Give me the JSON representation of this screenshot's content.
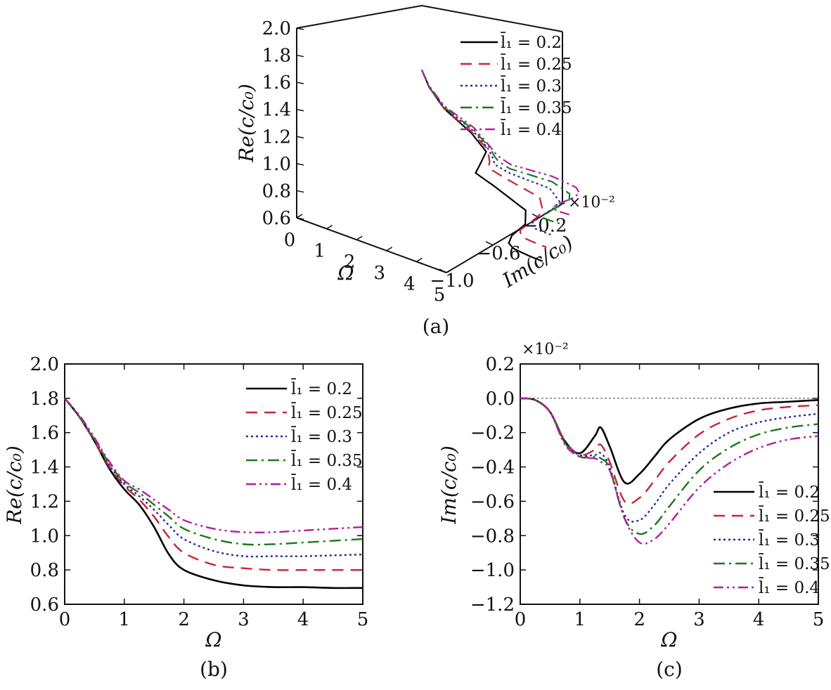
{
  "series_styles": [
    {
      "name": "l̄₁ = 0.2",
      "color": "#000000",
      "dash": ""
    },
    {
      "name": "l̄₁ = 0.25",
      "color": "#cc2233",
      "dash": "16,10"
    },
    {
      "name": "l̄₁ = 0.3",
      "color": "#2a2a9a",
      "dash": "3,4"
    },
    {
      "name": "l̄₁ = 0.35",
      "color": "#1a7a1a",
      "dash": "16,6,3,6"
    },
    {
      "name": "l̄₁ = 0.4",
      "color": "#b020a0",
      "dash": "14,5,3,5,3,5"
    }
  ],
  "chart_data": [
    {
      "panel": "(a)",
      "type": "line",
      "projection": "3d",
      "xlabel": "Ω",
      "ylabel": "Im(c/c₀)",
      "zlabel": "Re(c/c₀)",
      "y_multiplier": "×10⁻²",
      "x_ticks": [
        "0",
        "1",
        "2",
        "3",
        "4",
        "5"
      ],
      "y_ticks": [
        "−1.0",
        "−0.6",
        "−0.2"
      ],
      "z_ticks": [
        "0.6",
        "0.8",
        "1.0",
        "1.2",
        "1.4",
        "1.6",
        "1.8",
        "2.0"
      ],
      "xlim": [
        0,
        5
      ],
      "ylim": [
        -1.0,
        0.0
      ],
      "zlim": [
        0.6,
        2.0
      ],
      "legend": [
        "l̄₁ = 0.2",
        "l̄₁ = 0.25",
        "l̄₁ = 0.3",
        "l̄₁ = 0.35",
        "l̄₁ = 0.4"
      ],
      "legend_position": "top-right"
    },
    {
      "panel": "(b)",
      "type": "line",
      "xlabel": "Ω",
      "ylabel": "Re(c/c₀)",
      "xlim": [
        0,
        5
      ],
      "ylim": [
        0.6,
        2.0
      ],
      "x_ticks": [
        "0",
        "1",
        "2",
        "3",
        "4",
        "5"
      ],
      "y_ticks": [
        "0.6",
        "0.8",
        "1.0",
        "1.2",
        "1.4",
        "1.6",
        "1.8",
        "2.0"
      ],
      "legend_position": "top-right",
      "x": [
        0,
        0.25,
        0.5,
        0.75,
        1.0,
        1.25,
        1.5,
        1.75,
        2.0,
        2.5,
        3.0,
        3.5,
        4.0,
        4.5,
        5.0
      ],
      "series": [
        {
          "name": "l̄₁ = 0.2",
          "values": [
            1.8,
            1.69,
            1.55,
            1.39,
            1.27,
            1.18,
            1.05,
            0.89,
            0.8,
            0.74,
            0.71,
            0.7,
            0.7,
            0.695,
            0.695
          ]
        },
        {
          "name": "l̄₁ = 0.25",
          "values": [
            1.8,
            1.69,
            1.55,
            1.4,
            1.29,
            1.21,
            1.11,
            0.99,
            0.9,
            0.83,
            0.81,
            0.8,
            0.8,
            0.8,
            0.8
          ]
        },
        {
          "name": "l̄₁ = 0.3",
          "values": [
            1.8,
            1.69,
            1.56,
            1.41,
            1.3,
            1.23,
            1.15,
            1.06,
            0.98,
            0.91,
            0.88,
            0.88,
            0.88,
            0.885,
            0.89
          ]
        },
        {
          "name": "l̄₁ = 0.35",
          "values": [
            1.8,
            1.69,
            1.56,
            1.42,
            1.31,
            1.25,
            1.18,
            1.11,
            1.04,
            0.98,
            0.95,
            0.95,
            0.96,
            0.97,
            0.98
          ]
        },
        {
          "name": "l̄₁ = 0.4",
          "values": [
            1.8,
            1.7,
            1.57,
            1.43,
            1.32,
            1.27,
            1.21,
            1.15,
            1.09,
            1.04,
            1.02,
            1.02,
            1.03,
            1.04,
            1.05
          ]
        }
      ]
    },
    {
      "panel": "(c)",
      "type": "line",
      "xlabel": "Ω",
      "ylabel": "Im(c/c₀)",
      "y_multiplier": "×10⁻²",
      "xlim": [
        0,
        5
      ],
      "ylim": [
        -1.2,
        0.2
      ],
      "x_ticks": [
        "0",
        "1",
        "2",
        "3",
        "4",
        "5"
      ],
      "y_ticks": [
        "−1.2",
        "−1.0",
        "−0.8",
        "−0.6",
        "−0.4",
        "−0.2",
        "0.0",
        "0.2"
      ],
      "legend_position": "bottom-right",
      "reference_line": 0.0,
      "x": [
        0,
        0.25,
        0.5,
        0.75,
        1.0,
        1.25,
        1.35,
        1.5,
        1.75,
        2.0,
        2.25,
        2.5,
        3.0,
        3.5,
        4.0,
        4.5,
        5.0
      ],
      "series": [
        {
          "name": "l̄₁ = 0.2",
          "values": [
            0.0,
            -0.01,
            -0.08,
            -0.25,
            -0.32,
            -0.22,
            -0.17,
            -0.28,
            -0.49,
            -0.44,
            -0.34,
            -0.24,
            -0.12,
            -0.06,
            -0.03,
            -0.02,
            -0.01
          ]
        },
        {
          "name": "l̄₁ = 0.25",
          "values": [
            0.0,
            -0.01,
            -0.08,
            -0.25,
            -0.33,
            -0.3,
            -0.27,
            -0.37,
            -0.6,
            -0.58,
            -0.48,
            -0.37,
            -0.21,
            -0.12,
            -0.07,
            -0.05,
            -0.04
          ]
        },
        {
          "name": "l̄₁ = 0.3",
          "values": [
            0.0,
            -0.01,
            -0.08,
            -0.26,
            -0.33,
            -0.33,
            -0.32,
            -0.4,
            -0.68,
            -0.71,
            -0.62,
            -0.5,
            -0.32,
            -0.2,
            -0.14,
            -0.11,
            -0.09
          ]
        },
        {
          "name": "l̄₁ = 0.35",
          "values": [
            0.0,
            -0.01,
            -0.08,
            -0.26,
            -0.34,
            -0.34,
            -0.35,
            -0.41,
            -0.7,
            -0.79,
            -0.74,
            -0.63,
            -0.42,
            -0.29,
            -0.21,
            -0.17,
            -0.15
          ]
        },
        {
          "name": "l̄₁ = 0.4",
          "values": [
            0.0,
            -0.01,
            -0.08,
            -0.27,
            -0.34,
            -0.35,
            -0.37,
            -0.42,
            -0.7,
            -0.84,
            -0.82,
            -0.73,
            -0.52,
            -0.38,
            -0.29,
            -0.24,
            -0.22
          ]
        }
      ]
    }
  ]
}
